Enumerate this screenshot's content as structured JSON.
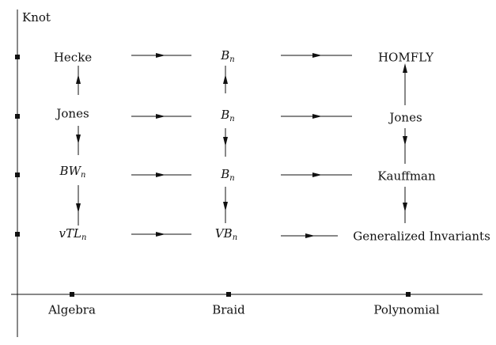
{
  "axes": {
    "y_title": "Knot",
    "x_labels": [
      "Algebra",
      "Braid",
      "Polynomial"
    ]
  },
  "nodes": {
    "algebra": [
      {
        "base": "Hecke",
        "sub": ""
      },
      {
        "base": "Jones",
        "sub": ""
      },
      {
        "base": "BW",
        "sub": "n"
      },
      {
        "base": "vTL",
        "sub": "n"
      }
    ],
    "braid": [
      {
        "base": "B",
        "sub": "n"
      },
      {
        "base": "B",
        "sub": "n"
      },
      {
        "base": "B",
        "sub": "n"
      },
      {
        "base": "VB",
        "sub": "n"
      }
    ],
    "polynomial": [
      {
        "base": "HOMFLY",
        "sub": ""
      },
      {
        "base": "Jones",
        "sub": ""
      },
      {
        "base": "Kauffman",
        "sub": ""
      },
      {
        "base": "Generalized Invariants",
        "sub": ""
      }
    ]
  },
  "colors": {
    "ink": "#111111",
    "background": "#ffffff"
  }
}
